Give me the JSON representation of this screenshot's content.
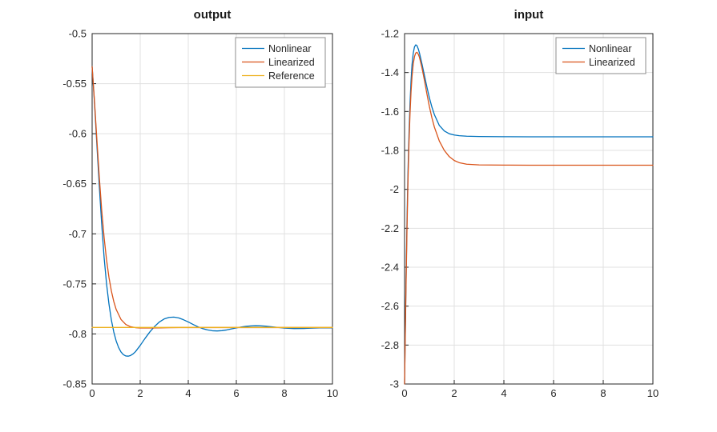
{
  "figure": {
    "background": "#ffffff"
  },
  "style": {
    "axis_color": "#262626",
    "grid_color": "#e0e0e0",
    "tick_label_color": "#262626",
    "legend_border": "#8c8c8c",
    "legend_background": "#ffffff",
    "series_blue": "#0072BD",
    "series_orange": "#D95319",
    "series_yellow": "#EDB120"
  },
  "chart_data": [
    {
      "type": "line",
      "title": "output",
      "xlabel": "",
      "ylabel": "",
      "xlim": [
        0,
        10
      ],
      "ylim": [
        -0.85,
        -0.5
      ],
      "xticks": [
        0,
        2,
        4,
        6,
        8,
        10
      ],
      "xtick_labels": [
        "0",
        "2",
        "4",
        "6",
        "8",
        "10"
      ],
      "yticks": [
        -0.85,
        -0.8,
        -0.75,
        -0.7,
        -0.65,
        -0.6,
        -0.55,
        -0.5
      ],
      "ytick_labels": [
        "-0.85",
        "-0.8",
        "-0.75",
        "-0.7",
        "-0.65",
        "-0.6",
        "-0.55",
        "-0.5"
      ],
      "grid": true,
      "legend": {
        "position": "northeast",
        "entries": [
          "Nonlinear",
          "Linearized",
          "Reference"
        ]
      },
      "series": [
        {
          "name": "Nonlinear",
          "color": "#0072BD",
          "x": [
            0,
            0.1,
            0.2,
            0.3,
            0.4,
            0.5,
            0.6,
            0.7,
            0.8,
            0.9,
            1.0,
            1.1,
            1.2,
            1.3,
            1.4,
            1.5,
            1.6,
            1.7,
            1.8,
            2.0,
            2.2,
            2.4,
            2.6,
            2.8,
            3.0,
            3.2,
            3.4,
            3.6,
            3.8,
            4.0,
            4.2,
            4.4,
            4.6,
            4.8,
            5.0,
            5.2,
            5.4,
            5.6,
            5.8,
            6.0,
            6.2,
            6.4,
            6.6,
            6.8,
            7.0,
            7.2,
            7.4,
            7.6,
            7.8,
            8.0,
            8.4,
            8.8,
            9.2,
            9.6,
            10.0
          ],
          "y": [
            -0.533,
            -0.57,
            -0.612,
            -0.653,
            -0.691,
            -0.724,
            -0.75,
            -0.77,
            -0.786,
            -0.798,
            -0.807,
            -0.8135,
            -0.818,
            -0.8207,
            -0.822,
            -0.8222,
            -0.8215,
            -0.82,
            -0.8178,
            -0.8115,
            -0.8045,
            -0.798,
            -0.7925,
            -0.788,
            -0.785,
            -0.7835,
            -0.7832,
            -0.784,
            -0.7858,
            -0.788,
            -0.7905,
            -0.7928,
            -0.7947,
            -0.796,
            -0.7968,
            -0.797,
            -0.7967,
            -0.796,
            -0.795,
            -0.794,
            -0.7931,
            -0.7924,
            -0.792,
            -0.7918,
            -0.7919,
            -0.7922,
            -0.7927,
            -0.7932,
            -0.7937,
            -0.7941,
            -0.7946,
            -0.7945,
            -0.7941,
            -0.7938,
            -0.7939
          ]
        },
        {
          "name": "Linearized",
          "color": "#D95319",
          "x": [
            0,
            0.1,
            0.2,
            0.3,
            0.4,
            0.5,
            0.6,
            0.7,
            0.8,
            0.9,
            1.0,
            1.2,
            1.4,
            1.6,
            1.8,
            2.0,
            2.4,
            2.8,
            3.2,
            3.6,
            4.0,
            5.0,
            6.0,
            8.0,
            10.0
          ],
          "y": [
            -0.533,
            -0.5685,
            -0.607,
            -0.644,
            -0.677,
            -0.704,
            -0.726,
            -0.7435,
            -0.757,
            -0.7675,
            -0.7755,
            -0.7855,
            -0.7905,
            -0.7928,
            -0.7937,
            -0.794,
            -0.794,
            -0.7939,
            -0.7937,
            -0.7936,
            -0.7936,
            -0.7936,
            -0.7936,
            -0.7936,
            -0.7936
          ]
        },
        {
          "name": "Reference",
          "color": "#EDB120",
          "x": [
            0,
            10
          ],
          "y": [
            -0.7935,
            -0.7935
          ]
        }
      ]
    },
    {
      "type": "line",
      "title": "input",
      "xlabel": "",
      "ylabel": "",
      "xlim": [
        0,
        10
      ],
      "ylim": [
        -3,
        -1.2
      ],
      "xticks": [
        0,
        2,
        4,
        6,
        8,
        10
      ],
      "xtick_labels": [
        "0",
        "2",
        "4",
        "6",
        "8",
        "10"
      ],
      "yticks": [
        -3,
        -2.8,
        -2.6,
        -2.4,
        -2.2,
        -2,
        -1.8,
        -1.6,
        -1.4,
        -1.2
      ],
      "ytick_labels": [
        "-3",
        "-2.8",
        "-2.6",
        "-2.4",
        "-2.2",
        "-2",
        "-1.8",
        "-1.6",
        "-1.4",
        "-1.2"
      ],
      "grid": true,
      "legend": {
        "position": "northeast",
        "entries": [
          "Nonlinear",
          "Linearized"
        ]
      },
      "series": [
        {
          "name": "Nonlinear",
          "color": "#0072BD",
          "x": [
            0,
            0.03,
            0.06,
            0.1,
            0.14,
            0.18,
            0.22,
            0.26,
            0.3,
            0.35,
            0.4,
            0.45,
            0.5,
            0.55,
            0.6,
            0.7,
            0.8,
            0.9,
            1.0,
            1.1,
            1.2,
            1.4,
            1.6,
            1.8,
            2.0,
            2.2,
            2.5,
            3.0,
            3.5,
            4.0,
            5.0,
            6.0,
            8.0,
            10.0
          ],
          "y": [
            -3.0,
            -2.72,
            -2.46,
            -2.15,
            -1.9,
            -1.71,
            -1.56,
            -1.445,
            -1.36,
            -1.3,
            -1.268,
            -1.258,
            -1.262,
            -1.278,
            -1.3,
            -1.355,
            -1.415,
            -1.475,
            -1.53,
            -1.577,
            -1.616,
            -1.672,
            -1.7,
            -1.7145,
            -1.721,
            -1.7245,
            -1.727,
            -1.7285,
            -1.729,
            -1.7295,
            -1.73,
            -1.73,
            -1.73,
            -1.73
          ]
        },
        {
          "name": "Linearized",
          "color": "#D95319",
          "x": [
            0,
            0.03,
            0.06,
            0.1,
            0.14,
            0.18,
            0.22,
            0.26,
            0.3,
            0.35,
            0.4,
            0.45,
            0.5,
            0.55,
            0.6,
            0.7,
            0.8,
            0.9,
            1.0,
            1.1,
            1.2,
            1.4,
            1.6,
            1.8,
            2.0,
            2.2,
            2.5,
            3.0,
            3.5,
            4.0,
            5.0,
            6.0,
            8.0,
            10.0
          ],
          "y": [
            -3.0,
            -2.74,
            -2.49,
            -2.19,
            -1.945,
            -1.755,
            -1.61,
            -1.5,
            -1.42,
            -1.355,
            -1.318,
            -1.3,
            -1.296,
            -1.305,
            -1.322,
            -1.375,
            -1.44,
            -1.51,
            -1.575,
            -1.632,
            -1.68,
            -1.752,
            -1.8,
            -1.832,
            -1.852,
            -1.863,
            -1.871,
            -1.8745,
            -1.875,
            -1.8755,
            -1.876,
            -1.876,
            -1.876,
            -1.876
          ]
        }
      ]
    }
  ]
}
